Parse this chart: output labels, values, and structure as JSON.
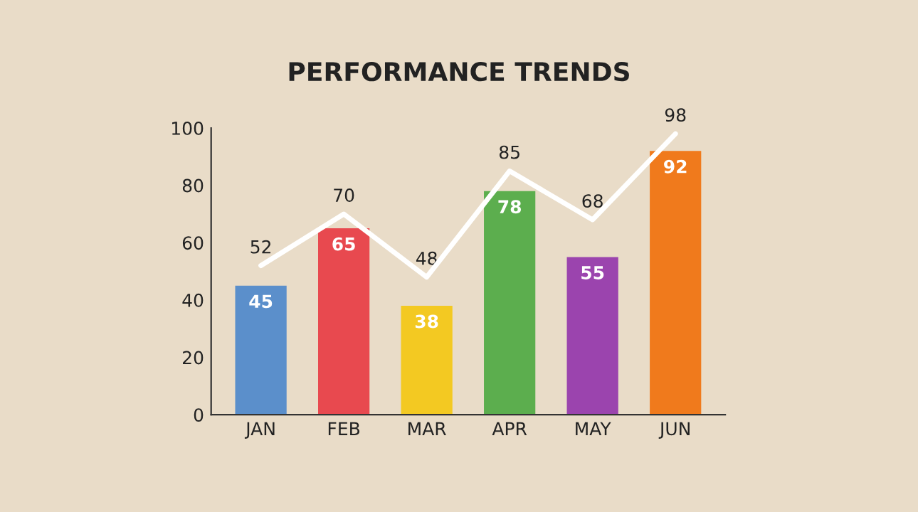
{
  "chart_data": {
    "type": "bar",
    "title": "PERFORMANCE TRENDS",
    "categories": [
      "JAN",
      "FEB",
      "MAR",
      "APR",
      "MAY",
      "JUN"
    ],
    "series": [
      {
        "colors": [
          "#5b8fcb",
          "#e8494f",
          "#f3c922",
          "#5cae4e",
          "#9b44ae",
          "#f07a1c"
        ],
        "values": [
          45,
          65,
          38,
          78,
          55,
          92
        ]
      },
      {
        "type": "line",
        "color": "#ffffff",
        "values": [
          52,
          70,
          48,
          85,
          68,
          98
        ]
      }
    ],
    "ylim": [
      0,
      100
    ],
    "yticks": [
      0,
      20,
      40,
      60,
      80,
      100
    ],
    "grid": false,
    "data_labels": true,
    "legend": false
  }
}
